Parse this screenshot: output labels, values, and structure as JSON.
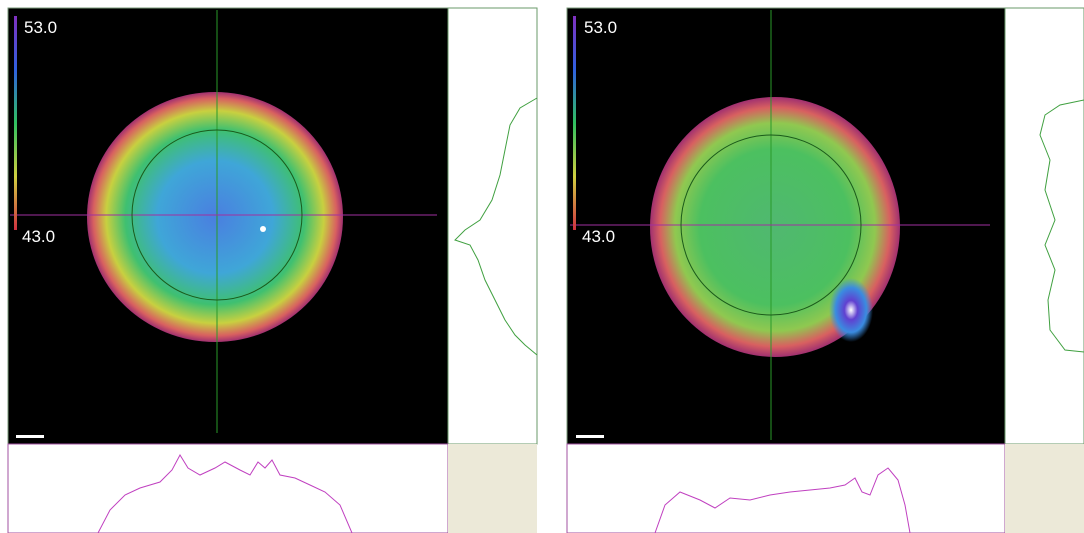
{
  "panels": [
    {
      "scale_max": "53.0",
      "scale_min": "43.0"
    },
    {
      "scale_max": "53.0",
      "scale_min": "43.0"
    }
  ]
}
